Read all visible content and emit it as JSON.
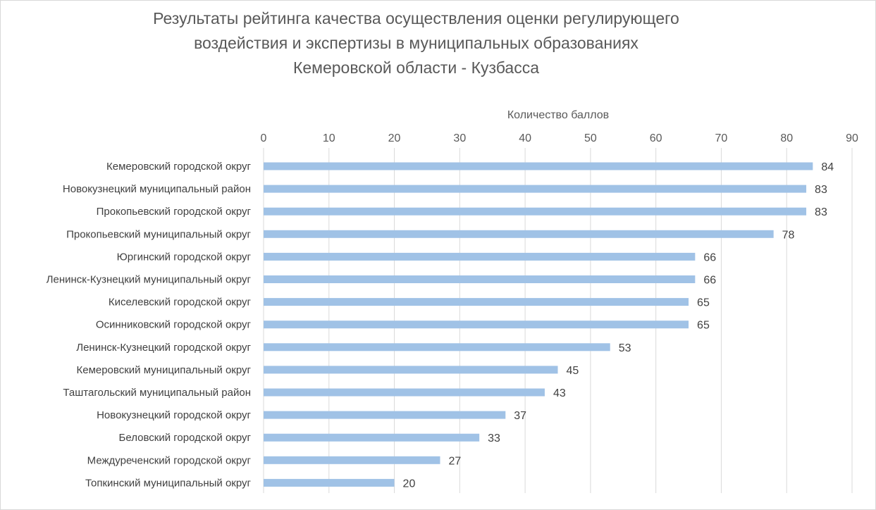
{
  "chart_data": {
    "type": "bar",
    "orientation": "horizontal",
    "title_lines": [
      "Результаты рейтинга качества осуществления оценки регулирующего",
      "воздействия и экспертизы в муниципальных образованиях",
      "Кемеровской области - Кузбасса"
    ],
    "xlabel": "Количество баллов",
    "ylabel": "",
    "xlim": [
      0,
      90
    ],
    "x_ticks": [
      0,
      10,
      20,
      30,
      40,
      50,
      60,
      70,
      80,
      90
    ],
    "x_axis_position": "top",
    "grid": true,
    "bar_color": "#a0c2e6",
    "categories": [
      "Кемеровский городской округ",
      "Новокузнецкий муниципальный район",
      "Прокопьевский городской округ",
      "Прокопьевский муниципальный округ",
      "Юргинский городской округ",
      "Ленинск-Кузнецкий муниципальный округ",
      "Киселевский городской округ",
      "Осинниковский городской округ",
      "Ленинск-Кузнецкий городской округ",
      "Кемеровский муниципальный округ",
      "Таштагольский муниципальный район",
      "Новокузнецкий городской округ",
      "Беловский городской округ",
      "Междуреченский городской округ",
      "Топкинский муниципальный округ"
    ],
    "values": [
      84,
      83,
      83,
      78,
      66,
      66,
      65,
      65,
      53,
      45,
      43,
      37,
      33,
      27,
      20
    ]
  }
}
